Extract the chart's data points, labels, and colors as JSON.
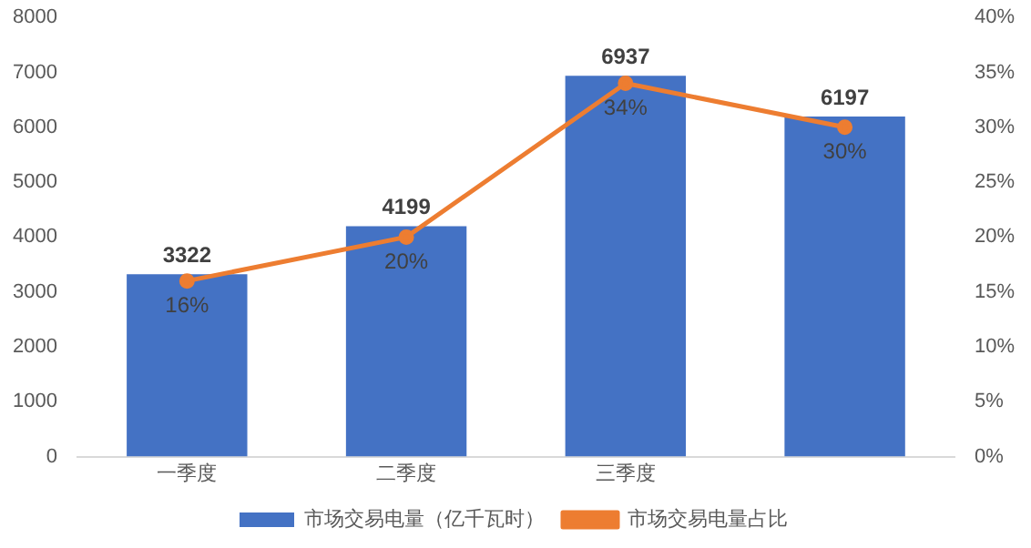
{
  "chart_data": {
    "type": "bar",
    "categories": [
      "一季度",
      "二季度",
      "三季度",
      null
    ],
    "series": [
      {
        "name": "市场交易电量（亿千瓦时）",
        "color": "#4472c4",
        "values": [
          3322,
          4199,
          6937,
          6197
        ]
      },
      {
        "name": "市场交易电量占比",
        "type": "line",
        "axis": "y2",
        "color": "#ed7d31",
        "marker": "circle",
        "values": [
          16,
          20,
          34,
          30
        ]
      }
    ],
    "ylim": [
      0,
      8000
    ],
    "yticks": [
      0,
      1000,
      2000,
      3000,
      4000,
      5000,
      6000,
      7000,
      8000
    ],
    "y2lim": [
      0,
      40
    ],
    "y2ticks": [
      {
        "value": 0,
        "label": "0%"
      },
      {
        "value": 5,
        "label": "5%"
      },
      {
        "value": 10,
        "label": "10%"
      },
      {
        "value": 15,
        "label": "15%"
      },
      {
        "value": 20,
        "label": "20%"
      },
      {
        "value": 25,
        "label": "25%"
      },
      {
        "value": 30,
        "label": "30%"
      },
      {
        "value": 35,
        "label": "35%"
      },
      {
        "value": 40,
        "label": "40%"
      }
    ],
    "value_labels": [
      [
        "3322",
        "4199",
        "6937",
        "6197"
      ],
      [
        "16%",
        "20%",
        "34%",
        "30%"
      ]
    ],
    "grid": false,
    "legend": "bottom"
  }
}
